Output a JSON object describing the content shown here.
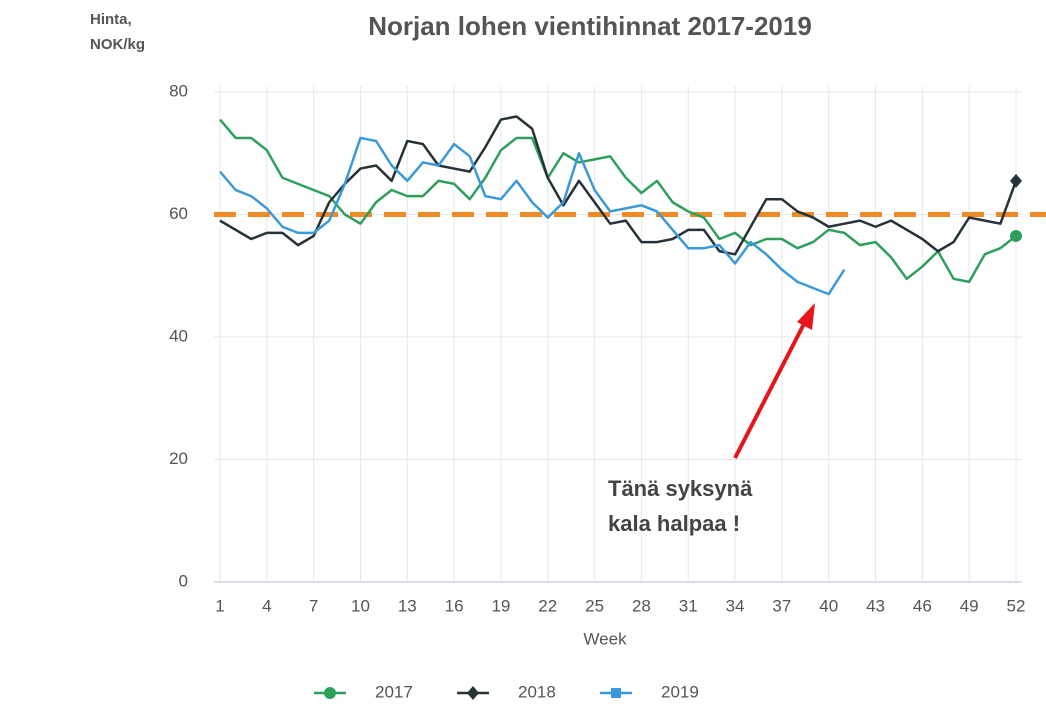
{
  "chart_data": {
    "type": "line",
    "title": "Norjan lohen vientihinnat 2017-2019",
    "y_label": [
      "Hinta,",
      "NOK/kg"
    ],
    "x_label": "Week",
    "annotation": [
      "Tänä syksynä",
      "kala halpaa !"
    ],
    "reference_line": {
      "value": 60,
      "color": "#f08a24"
    },
    "x": [
      1,
      2,
      3,
      4,
      5,
      6,
      7,
      8,
      9,
      10,
      11,
      12,
      13,
      14,
      15,
      16,
      17,
      18,
      19,
      20,
      21,
      22,
      23,
      24,
      25,
      26,
      27,
      28,
      29,
      30,
      31,
      32,
      33,
      34,
      35,
      36,
      37,
      38,
      39,
      40,
      41,
      42,
      43,
      44,
      45,
      46,
      47,
      48,
      49,
      50,
      51,
      52
    ],
    "xlim": [
      1,
      52
    ],
    "xticks": [
      1,
      4,
      7,
      10,
      13,
      16,
      19,
      22,
      25,
      28,
      31,
      34,
      37,
      40,
      43,
      46,
      49,
      52
    ],
    "ylim": [
      0,
      80
    ],
    "yticks": [
      0,
      20,
      40,
      60,
      80
    ],
    "grid": true,
    "legend": "bottom",
    "series": [
      {
        "name": "2017",
        "color": "#2ca05a",
        "marker": "circle",
        "end_marker": true,
        "values": [
          75.5,
          72.5,
          72.5,
          70.5,
          66,
          65,
          64,
          63,
          60,
          58.5,
          62,
          64,
          63,
          63,
          65.5,
          65,
          62.5,
          66,
          70.5,
          72.5,
          72.5,
          66,
          70,
          68.5,
          69,
          69.5,
          66,
          63.5,
          65.5,
          62,
          60.5,
          59.5,
          56,
          57,
          55,
          56,
          56,
          54.5,
          55.5,
          57.5,
          57,
          55,
          55.5,
          53,
          49.5,
          51.5,
          54,
          49.5,
          49,
          53.5,
          54.5,
          56.5
        ]
      },
      {
        "name": "2018",
        "color": "#253237",
        "marker": "diamond",
        "end_marker": true,
        "values": [
          59,
          57.5,
          56,
          57,
          57,
          55,
          56.5,
          62,
          65,
          67.5,
          68,
          65.5,
          72,
          71.5,
          68,
          67.5,
          67,
          71,
          75.5,
          76,
          74,
          66,
          61.5,
          65.5,
          62,
          58.5,
          59,
          55.5,
          55.5,
          56,
          57.5,
          57.5,
          54,
          53.5,
          58,
          62.5,
          62.5,
          60.5,
          59.5,
          58,
          58.5,
          59,
          58,
          59,
          57.5,
          56,
          54,
          55.5,
          59.5,
          59,
          58.5,
          65.5
        ]
      },
      {
        "name": "2019",
        "color": "#3a9ad9",
        "marker": "square",
        "end_marker": false,
        "values": [
          67,
          64,
          63,
          61,
          58,
          57,
          57,
          59,
          65,
          72.5,
          72,
          68,
          65.5,
          68.5,
          68,
          71.5,
          69.5,
          63,
          62.5,
          65.5,
          62,
          59.5,
          62,
          70,
          64,
          60.5,
          61,
          61.5,
          60.5,
          57.5,
          54.5,
          54.5,
          55,
          52,
          55.5,
          53.5,
          51,
          49,
          48,
          47,
          51,
          null,
          null,
          null,
          null,
          null,
          null,
          null,
          null,
          null,
          null,
          null
        ]
      }
    ]
  }
}
